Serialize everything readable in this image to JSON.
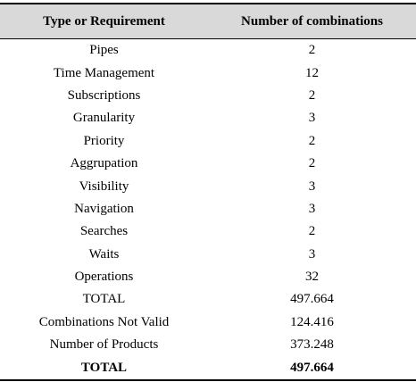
{
  "table": {
    "header": [
      "Type or Requirement",
      "Number of combinations"
    ],
    "rows": [
      [
        "Pipes",
        "2"
      ],
      [
        "Time Management",
        "12"
      ],
      [
        "Subscriptions",
        "2"
      ],
      [
        "Granularity",
        "3"
      ],
      [
        "Priority",
        "2"
      ],
      [
        "Aggrupation",
        "2"
      ],
      [
        "Visibility",
        "3"
      ],
      [
        "Navigation",
        "3"
      ],
      [
        "Searches",
        "2"
      ],
      [
        "Waits",
        "3"
      ],
      [
        "Operations",
        "32"
      ],
      [
        "TOTAL",
        "497.664"
      ],
      [
        "Combinations Not Valid",
        "124.416"
      ],
      [
        "Number of Products",
        "373.248"
      ],
      [
        "TOTAL",
        "497.664"
      ]
    ]
  }
}
